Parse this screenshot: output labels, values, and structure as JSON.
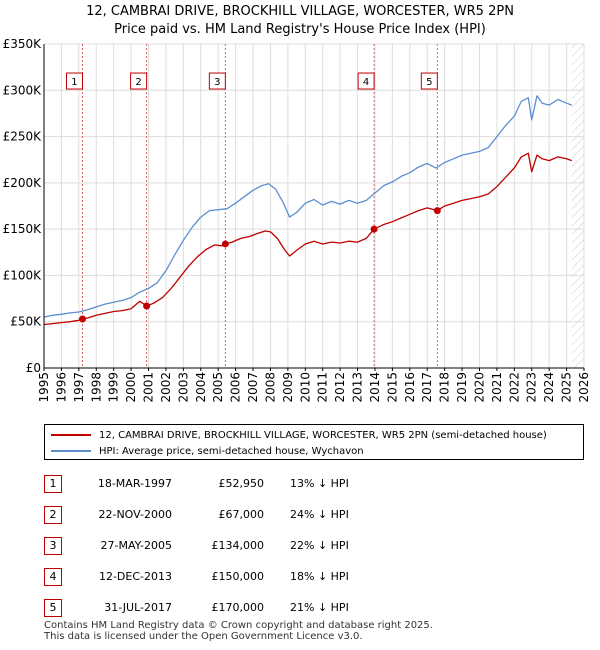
{
  "title_line1": "12, CAMBRAI DRIVE, BROCKHILL VILLAGE, WORCESTER, WR5 2PN",
  "title_line2": "Price paid vs. HM Land Registry's House Price Index (HPI)",
  "colors": {
    "property": "#c00000",
    "hpi": "#5b8fd0",
    "grid": "#dddddd",
    "sale_line": "#e06060"
  },
  "chart_data": {
    "type": "line",
    "ylim": [
      0,
      350000
    ],
    "xlim": [
      1995,
      2026
    ],
    "y_ticks": [
      0,
      50000,
      100000,
      150000,
      200000,
      250000,
      300000,
      350000
    ],
    "y_tick_labels": [
      "£0",
      "£50K",
      "£100K",
      "£150K",
      "£200K",
      "£250K",
      "£300K",
      "£350K"
    ],
    "x_ticks": [
      1995,
      1996,
      1997,
      1998,
      1999,
      2000,
      2001,
      2002,
      2003,
      2004,
      2005,
      2006,
      2007,
      2008,
      2009,
      2010,
      2011,
      2012,
      2013,
      2014,
      2015,
      2016,
      2017,
      2018,
      2019,
      2020,
      2021,
      2022,
      2023,
      2024,
      2025,
      2026
    ],
    "series": [
      {
        "name": "12, CAMBRAI DRIVE, BROCKHILL VILLAGE, WORCESTER, WR5 2PN (semi-detached house)",
        "key": "property",
        "points": [
          [
            1995.0,
            47000
          ],
          [
            1995.5,
            48000
          ],
          [
            1996.0,
            49000
          ],
          [
            1996.5,
            50000
          ],
          [
            1997.0,
            51500
          ],
          [
            1997.21,
            52950
          ],
          [
            1997.5,
            54000
          ],
          [
            1998.0,
            57000
          ],
          [
            1998.5,
            59000
          ],
          [
            1999.0,
            61000
          ],
          [
            1999.5,
            62000
          ],
          [
            2000.0,
            64000
          ],
          [
            2000.5,
            72000
          ],
          [
            2000.89,
            67000
          ],
          [
            2001.3,
            70000
          ],
          [
            2001.8,
            76000
          ],
          [
            2002.3,
            86000
          ],
          [
            2002.8,
            98000
          ],
          [
            2003.3,
            110000
          ],
          [
            2003.8,
            120000
          ],
          [
            2004.3,
            128000
          ],
          [
            2004.8,
            133000
          ],
          [
            2005.2,
            132000
          ],
          [
            2005.41,
            134000
          ],
          [
            2005.8,
            136000
          ],
          [
            2006.3,
            140000
          ],
          [
            2006.8,
            142000
          ],
          [
            2007.2,
            145000
          ],
          [
            2007.7,
            148000
          ],
          [
            2008.0,
            147000
          ],
          [
            2008.4,
            140000
          ],
          [
            2008.8,
            128000
          ],
          [
            2009.1,
            121000
          ],
          [
            2009.5,
            127000
          ],
          [
            2010.0,
            134000
          ],
          [
            2010.5,
            137000
          ],
          [
            2011.0,
            134000
          ],
          [
            2011.5,
            136000
          ],
          [
            2012.0,
            135000
          ],
          [
            2012.5,
            137000
          ],
          [
            2013.0,
            136000
          ],
          [
            2013.5,
            140000
          ],
          [
            2013.95,
            150000
          ],
          [
            2014.5,
            155000
          ],
          [
            2015.0,
            158000
          ],
          [
            2015.5,
            162000
          ],
          [
            2016.0,
            166000
          ],
          [
            2016.5,
            170000
          ],
          [
            2017.0,
            173000
          ],
          [
            2017.58,
            170000
          ],
          [
            2018.0,
            175000
          ],
          [
            2018.5,
            178000
          ],
          [
            2019.0,
            181000
          ],
          [
            2019.5,
            183000
          ],
          [
            2020.0,
            185000
          ],
          [
            2020.5,
            188000
          ],
          [
            2021.0,
            196000
          ],
          [
            2021.5,
            206000
          ],
          [
            2022.0,
            216000
          ],
          [
            2022.4,
            228000
          ],
          [
            2022.8,
            232000
          ],
          [
            2023.0,
            212000
          ],
          [
            2023.3,
            230000
          ],
          [
            2023.6,
            226000
          ],
          [
            2024.0,
            224000
          ],
          [
            2024.5,
            228000
          ],
          [
            2025.0,
            226000
          ],
          [
            2025.3,
            224000
          ]
        ]
      },
      {
        "name": "HPI: Average price, semi-detached house, Wychavon",
        "key": "hpi",
        "points": [
          [
            1995.0,
            55000
          ],
          [
            1995.5,
            57000
          ],
          [
            1996.0,
            58000
          ],
          [
            1996.5,
            59500
          ],
          [
            1997.0,
            60500
          ],
          [
            1997.5,
            63000
          ],
          [
            1998.0,
            66000
          ],
          [
            1998.5,
            69000
          ],
          [
            1999.0,
            71000
          ],
          [
            1999.5,
            73000
          ],
          [
            2000.0,
            76000
          ],
          [
            2000.5,
            82000
          ],
          [
            2001.0,
            86000
          ],
          [
            2001.5,
            92000
          ],
          [
            2002.0,
            105000
          ],
          [
            2002.5,
            122000
          ],
          [
            2003.0,
            138000
          ],
          [
            2003.5,
            152000
          ],
          [
            2004.0,
            163000
          ],
          [
            2004.5,
            170000
          ],
          [
            2005.0,
            171000
          ],
          [
            2005.5,
            172000
          ],
          [
            2006.0,
            178000
          ],
          [
            2006.5,
            185000
          ],
          [
            2007.0,
            192000
          ],
          [
            2007.5,
            197000
          ],
          [
            2007.9,
            199000
          ],
          [
            2008.3,
            193000
          ],
          [
            2008.7,
            180000
          ],
          [
            2009.1,
            163000
          ],
          [
            2009.5,
            168000
          ],
          [
            2010.0,
            178000
          ],
          [
            2010.5,
            182000
          ],
          [
            2011.0,
            176000
          ],
          [
            2011.5,
            180000
          ],
          [
            2012.0,
            177000
          ],
          [
            2012.5,
            181000
          ],
          [
            2013.0,
            178000
          ],
          [
            2013.5,
            181000
          ],
          [
            2014.0,
            189000
          ],
          [
            2014.5,
            197000
          ],
          [
            2015.0,
            201000
          ],
          [
            2015.5,
            207000
          ],
          [
            2016.0,
            211000
          ],
          [
            2016.5,
            217000
          ],
          [
            2017.0,
            221000
          ],
          [
            2017.5,
            216000
          ],
          [
            2018.0,
            222000
          ],
          [
            2018.5,
            226000
          ],
          [
            2019.0,
            230000
          ],
          [
            2019.5,
            232000
          ],
          [
            2020.0,
            234000
          ],
          [
            2020.5,
            238000
          ],
          [
            2021.0,
            250000
          ],
          [
            2021.5,
            262000
          ],
          [
            2022.0,
            272000
          ],
          [
            2022.4,
            288000
          ],
          [
            2022.8,
            292000
          ],
          [
            2023.0,
            268000
          ],
          [
            2023.3,
            294000
          ],
          [
            2023.6,
            286000
          ],
          [
            2024.0,
            284000
          ],
          [
            2024.5,
            290000
          ],
          [
            2025.0,
            286000
          ],
          [
            2025.3,
            284000
          ]
        ]
      }
    ],
    "sales": [
      {
        "label": "1",
        "x": 1997.21,
        "y": 52950
      },
      {
        "label": "2",
        "x": 2000.89,
        "y": 67000
      },
      {
        "label": "3",
        "x": 2005.41,
        "y": 134000
      },
      {
        "label": "4",
        "x": 2013.95,
        "y": 150000
      },
      {
        "label": "5",
        "x": 2017.58,
        "y": 170000
      }
    ],
    "sale_marker_y": 310000
  },
  "legend": {
    "property": "12, CAMBRAI DRIVE, BROCKHILL VILLAGE, WORCESTER, WR5 2PN (semi-detached house)",
    "hpi": "HPI: Average price, semi-detached house, Wychavon"
  },
  "sales_table": [
    {
      "num": "1",
      "date": "18-MAR-1997",
      "price": "£52,950",
      "hpi": "13% ↓ HPI"
    },
    {
      "num": "2",
      "date": "22-NOV-2000",
      "price": "£67,000",
      "hpi": "24% ↓ HPI"
    },
    {
      "num": "3",
      "date": "27-MAY-2005",
      "price": "£134,000",
      "hpi": "22% ↓ HPI"
    },
    {
      "num": "4",
      "date": "12-DEC-2013",
      "price": "£150,000",
      "hpi": "18% ↓ HPI"
    },
    {
      "num": "5",
      "date": "31-JUL-2017",
      "price": "£170,000",
      "hpi": "21% ↓ HPI"
    }
  ],
  "footer_line1": "Contains HM Land Registry data © Crown copyright and database right 2025.",
  "footer_line2": "This data is licensed under the Open Government Licence v3.0."
}
